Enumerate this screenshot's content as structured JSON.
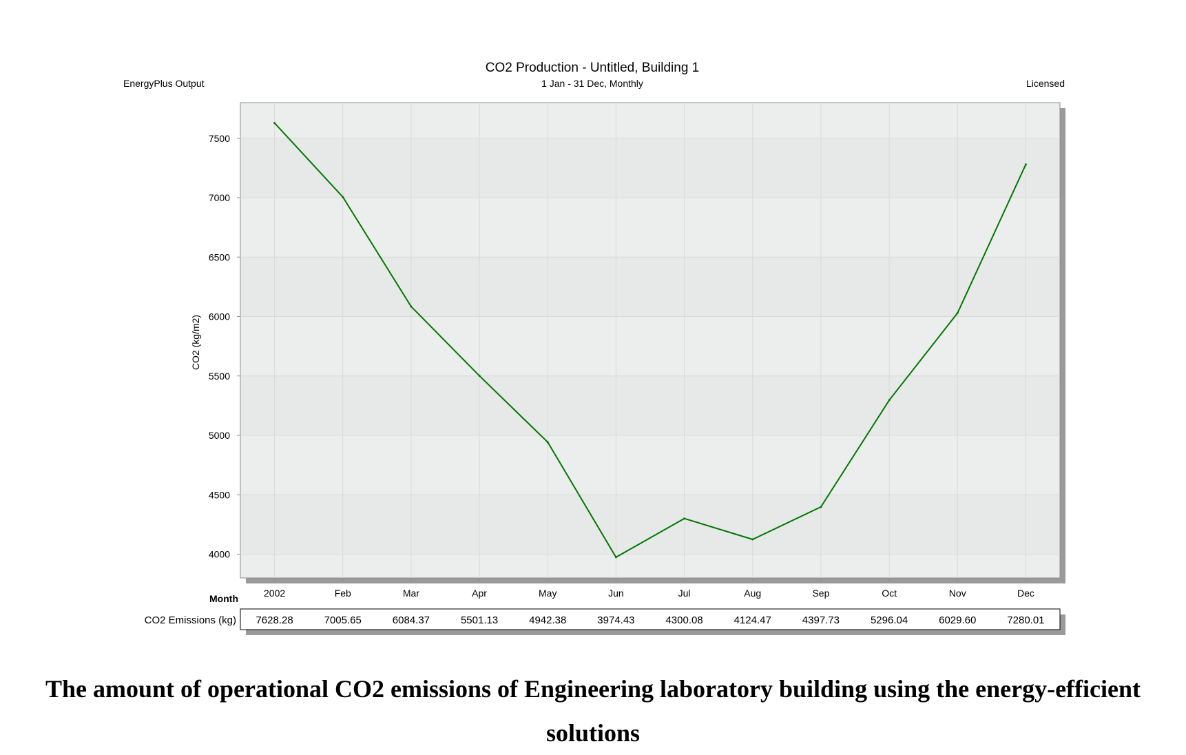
{
  "header": {
    "left": "EnergyPlus Output",
    "right": "Licensed"
  },
  "chart_data": {
    "type": "line",
    "title": "CO2 Production - Untitled, Building 1",
    "subtitle": "1 Jan - 31 Dec, Monthly",
    "xlabel": "Month",
    "ylabel": "CO2 (kg/m2)",
    "categories": [
      "2002",
      "Feb",
      "Mar",
      "Apr",
      "May",
      "Jun",
      "Jul",
      "Aug",
      "Sep",
      "Oct",
      "Nov",
      "Dec"
    ],
    "ylim": [
      3800,
      7800
    ],
    "yticks": [
      4000,
      4500,
      5000,
      5500,
      6000,
      6500,
      7000,
      7500
    ],
    "grid": true,
    "series": [
      {
        "name": "CO2 Emissions (kg)",
        "color": "#007700",
        "values": [
          7628.28,
          7005.65,
          6084.37,
          5501.13,
          4942.38,
          3974.43,
          4300.08,
          4124.47,
          4397.73,
          5296.04,
          6029.6,
          7280.01
        ],
        "labels": [
          "7628.28",
          "7005.65",
          "6084.37",
          "5501.13",
          "4942.38",
          "3974.43",
          "4300.08",
          "4124.47",
          "4397.73",
          "5296.04",
          "6029.60",
          "7280.01"
        ]
      }
    ],
    "colors": {
      "plot_bg": "#eceeed",
      "plot_border": "#8c8c8c",
      "shadow": "#9a9a9a",
      "grid": "#d8d8d8"
    }
  },
  "caption": {
    "line1": "The amount of operational CO2 emissions of Engineering laboratory building using the energy-efficient",
    "line2": "solutions"
  }
}
